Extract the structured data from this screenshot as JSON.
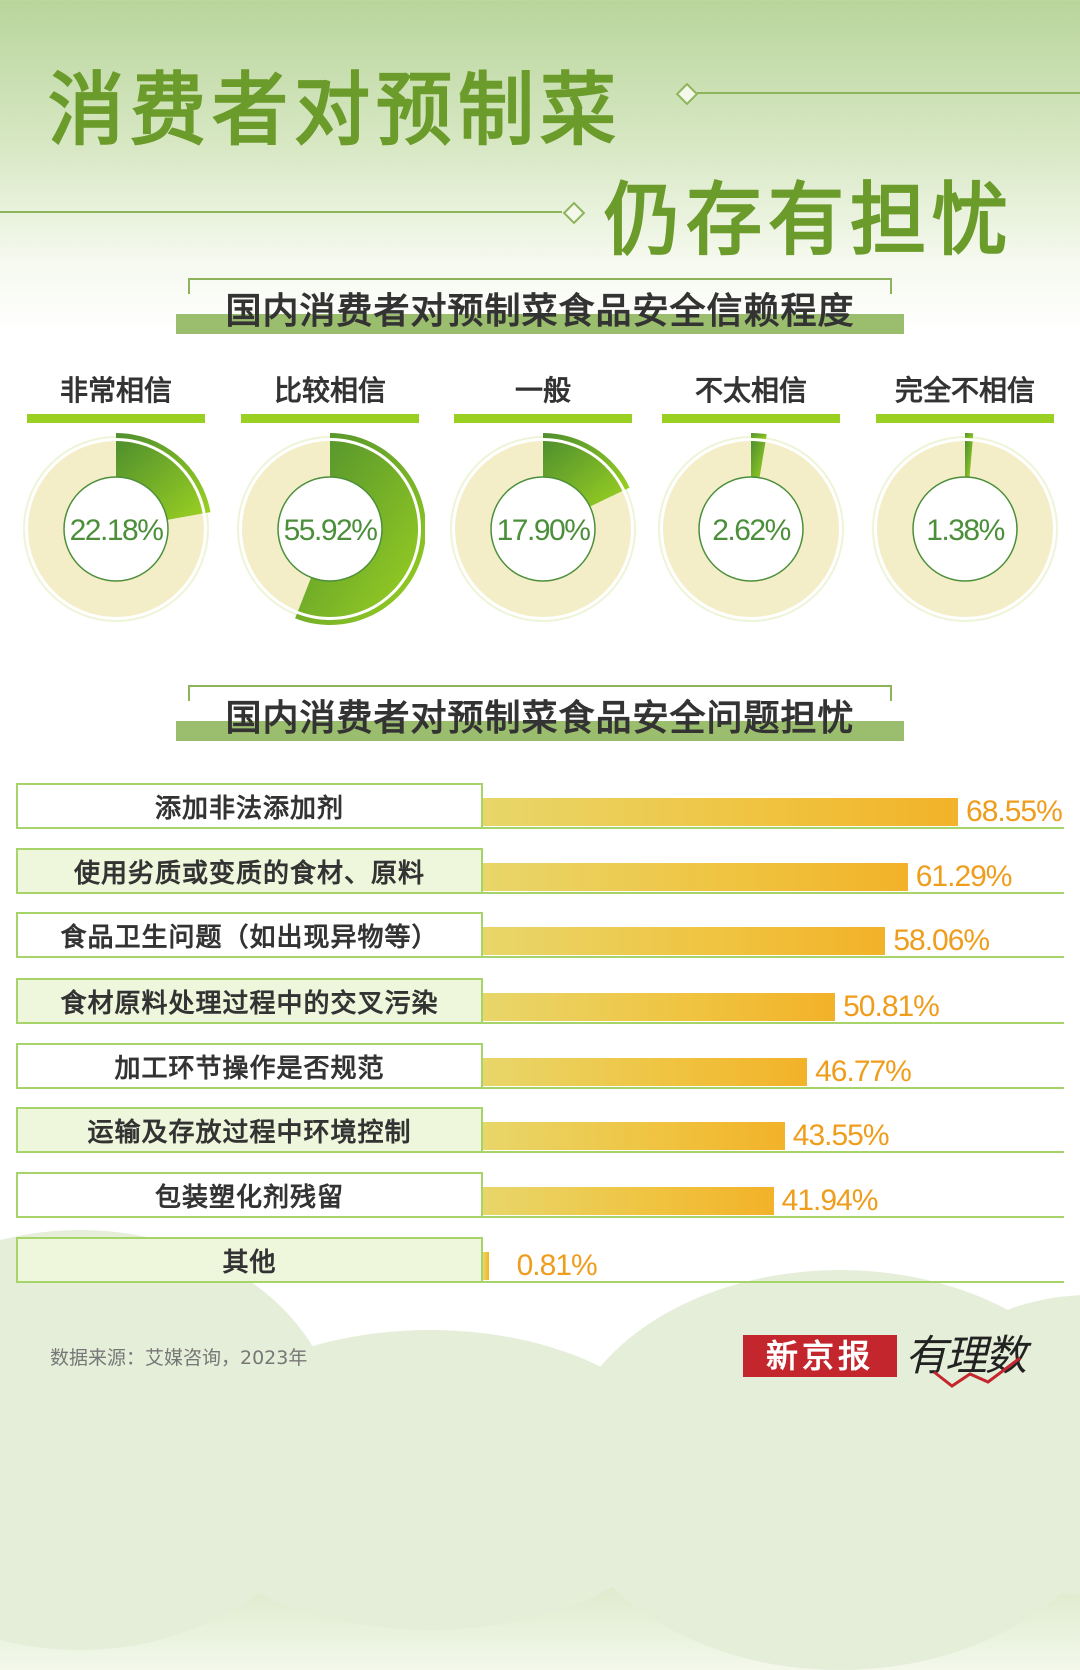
{
  "header": {
    "title_line1": "消费者对预制菜",
    "title_line2": "仍存有担忧"
  },
  "section1": {
    "title": "国内消费者对预制菜食品安全信赖程度"
  },
  "section2": {
    "title": "国内消费者对预制菜食品安全问题担忧"
  },
  "trust": [
    {
      "label": "非常相信",
      "value": 22.18,
      "display": "22.18%"
    },
    {
      "label": "比较相信",
      "value": 55.92,
      "display": "55.92%"
    },
    {
      "label": "一般",
      "value": 17.9,
      "display": "17.90%"
    },
    {
      "label": "不太相信",
      "value": 2.62,
      "display": "2.62%"
    },
    {
      "label": "完全不相信",
      "value": 1.38,
      "display": "1.38%"
    }
  ],
  "concerns": [
    {
      "label": "添加非法添加剂",
      "value": 68.55,
      "display": "68.55%"
    },
    {
      "label": "使用劣质或变质的食材、原料",
      "value": 61.29,
      "display": "61.29%"
    },
    {
      "label": "食品卫生问题（如出现异物等）",
      "value": 58.06,
      "display": "58.06%"
    },
    {
      "label": "食材原料处理过程中的交叉污染",
      "value": 50.81,
      "display": "50.81%"
    },
    {
      "label": "加工环节操作是否规范",
      "value": 46.77,
      "display": "46.77%"
    },
    {
      "label": "运输及存放过程中环境控制",
      "value": 43.55,
      "display": "43.55%"
    },
    {
      "label": "包装塑化剂残留",
      "value": 41.94,
      "display": "41.94%"
    },
    {
      "label": "其他",
      "value": 0.81,
      "display": "0.81%"
    }
  ],
  "footer": {
    "source": "数据来源：艾媒咨询，2023年",
    "logo_main": "新京报",
    "logo_sub": "有理数"
  },
  "colors": {
    "title_green": "#6b9b2a",
    "donut_green_dark": "#4f8f2e",
    "donut_green_light": "#9ad022",
    "donut_track": "#f4eec8",
    "bar_orange": "#f2b229",
    "value_orange": "#ef9d1c",
    "label_border": "#a7d46a"
  },
  "chart_data": [
    {
      "type": "pie",
      "title": "国内消费者对预制菜食品安全信赖程度",
      "categories": [
        "非常相信",
        "比较相信",
        "一般",
        "不太相信",
        "完全不相信"
      ],
      "values": [
        22.18,
        55.92,
        17.9,
        2.62,
        1.38
      ],
      "unit": "%",
      "note": "Each category shown as its own donut gauge (value out of 100%)"
    },
    {
      "type": "bar",
      "orientation": "horizontal",
      "title": "国内消费者对预制菜食品安全问题担忧",
      "categories": [
        "添加非法添加剂",
        "使用劣质或变质的食材、原料",
        "食品卫生问题（如出现异物等）",
        "食材原料处理过程中的交叉污染",
        "加工环节操作是否规范",
        "运输及存放过程中环境控制",
        "包装塑化剂残留",
        "其他"
      ],
      "values": [
        68.55,
        61.29,
        58.06,
        50.81,
        46.77,
        43.55,
        41.94,
        0.81
      ],
      "unit": "%",
      "xlabel": "",
      "ylabel": "",
      "grid": false,
      "source": "数据来源：艾媒咨询，2023年"
    }
  ]
}
